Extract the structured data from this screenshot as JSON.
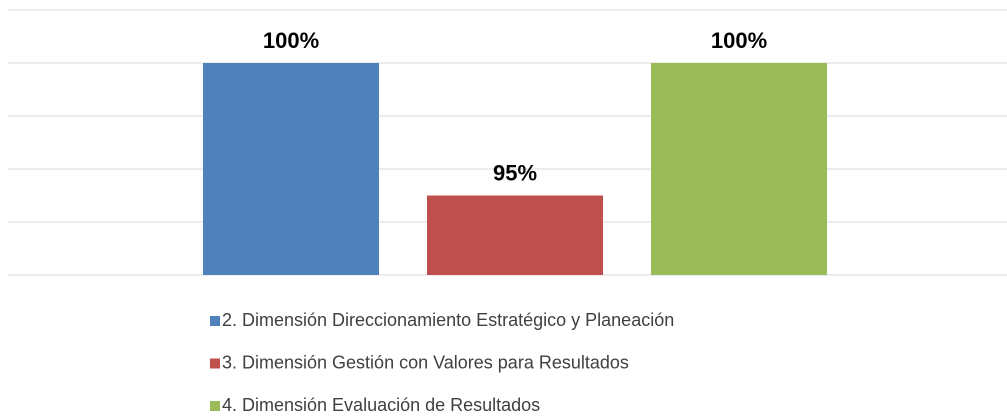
{
  "chart_data": {
    "type": "bar",
    "series": [
      {
        "name": "2. Dimensión Direccionamiento Estratégico y Planeación",
        "color": "#4f81bd",
        "values": [
          100
        ],
        "value_labels": [
          "100%"
        ]
      },
      {
        "name": "3. Dimensión Gestión con Valores para Resultados",
        "color": "#c0504d",
        "values": [
          95
        ],
        "value_labels": [
          "95%"
        ]
      },
      {
        "name": "4. Dimensión Evaluación de Resultados",
        "color": "#9bbb59",
        "values": [
          100
        ],
        "value_labels": [
          "100%"
        ]
      }
    ],
    "ylim": [
      92,
      102
    ],
    "yticks": [
      92,
      94,
      96,
      98,
      100,
      102
    ],
    "grid": true,
    "legend": "bottom"
  }
}
